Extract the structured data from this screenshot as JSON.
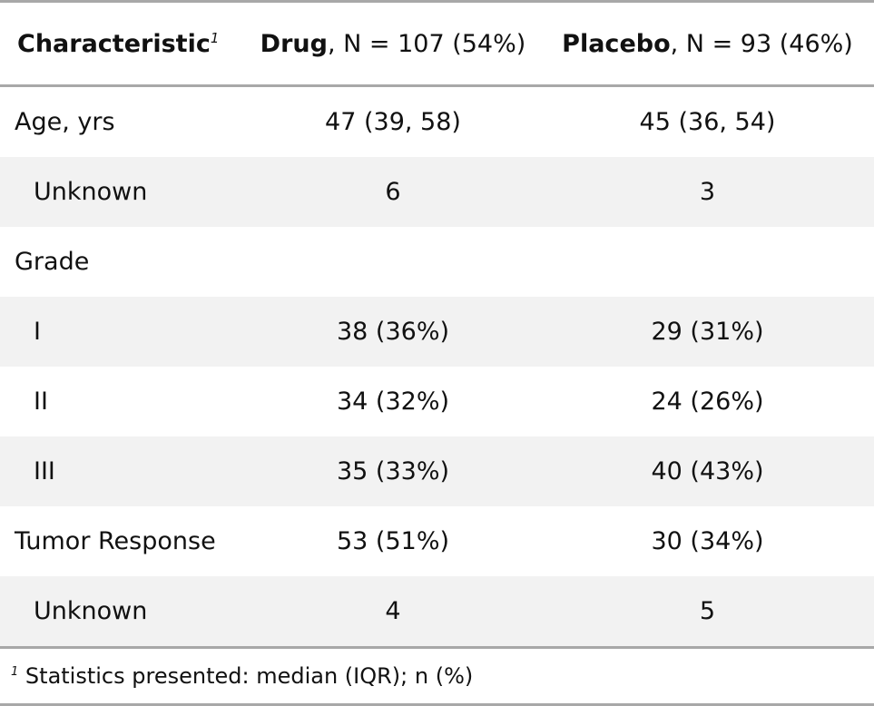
{
  "header": {
    "characteristic": "Characteristic",
    "footnote_marker": "1",
    "drug_name": "Drug",
    "drug_n": ", N = 107 (54%)",
    "placebo_name": "Placebo",
    "placebo_n": ", N = 93 (46%)"
  },
  "rows": [
    {
      "label": "Age, yrs",
      "drug": "47 (39, 58)",
      "placebo": "45 (36, 54)"
    },
    {
      "label": "Unknown",
      "drug": "6",
      "placebo": "3"
    },
    {
      "label": "Grade",
      "drug": "",
      "placebo": ""
    },
    {
      "label": "I",
      "drug": "38 (36%)",
      "placebo": "29 (31%)"
    },
    {
      "label": "II",
      "drug": "34 (32%)",
      "placebo": "24 (26%)"
    },
    {
      "label": "III",
      "drug": "35 (33%)",
      "placebo": "40 (43%)"
    },
    {
      "label": "Tumor Response",
      "drug": "53 (51%)",
      "placebo": "30 (34%)"
    },
    {
      "label": "Unknown",
      "drug": "4",
      "placebo": "5"
    }
  ],
  "footnote": {
    "marker": "1",
    "text": "Statistics presented: median (IQR); n (%)"
  }
}
